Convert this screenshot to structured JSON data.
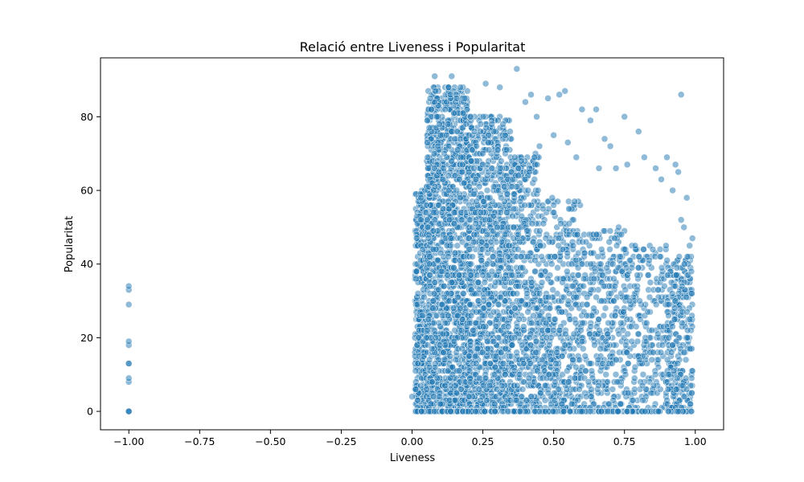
{
  "chart_data": {
    "type": "scatter",
    "title": "Relació entre Liveness i Popularitat",
    "xlabel": "Liveness",
    "ylabel": "Popularitat",
    "xlim": [
      -1.1,
      1.1
    ],
    "ylim": [
      -5,
      96
    ],
    "xticks": [
      -1.0,
      -0.75,
      -0.5,
      -0.25,
      0.0,
      0.25,
      0.5,
      0.75,
      1.0
    ],
    "xtick_labels": [
      "−1.00",
      "−0.75",
      "−0.50",
      "−0.25",
      "0.00",
      "0.25",
      "0.50",
      "0.75",
      "1.00"
    ],
    "yticks": [
      0,
      20,
      40,
      60,
      80
    ],
    "ytick_labels": [
      "0",
      "20",
      "40",
      "60",
      "80"
    ],
    "grid": false,
    "marker_color": "#1f77b4",
    "marker_alpha": 0.5,
    "points": [
      [
        -1.0,
        0
      ],
      [
        -1.0,
        0
      ],
      [
        -1.0,
        0
      ],
      [
        -1.0,
        8
      ],
      [
        -1.0,
        9
      ],
      [
        -1.0,
        13
      ],
      [
        -1.0,
        13
      ],
      [
        -1.0,
        18
      ],
      [
        -1.0,
        19
      ],
      [
        -1.0,
        29
      ],
      [
        -1.0,
        33
      ],
      [
        -1.0,
        34
      ],
      [
        0.0,
        4
      ],
      [
        0.37,
        93
      ],
      [
        0.95,
        86
      ],
      [
        0.08,
        91
      ],
      [
        0.14,
        91
      ],
      [
        0.26,
        89
      ],
      [
        0.31,
        88
      ],
      [
        0.54,
        87
      ],
      [
        0.52,
        86
      ],
      [
        0.48,
        85
      ],
      [
        0.42,
        86
      ],
      [
        0.6,
        82
      ],
      [
        0.65,
        82
      ],
      [
        0.75,
        80
      ],
      [
        0.8,
        76
      ],
      [
        0.63,
        79
      ],
      [
        0.55,
        73
      ],
      [
        0.68,
        74
      ],
      [
        0.7,
        72
      ],
      [
        0.82,
        69
      ],
      [
        0.9,
        69
      ],
      [
        0.93,
        67
      ],
      [
        0.97,
        58
      ],
      [
        0.94,
        65
      ],
      [
        0.86,
        66
      ],
      [
        0.88,
        63
      ],
      [
        0.92,
        60
      ],
      [
        0.95,
        52
      ],
      [
        0.96,
        50
      ],
      [
        0.99,
        47
      ],
      [
        0.98,
        45
      ],
      [
        0.76,
        67
      ],
      [
        0.72,
        66
      ],
      [
        0.66,
        66
      ],
      [
        0.58,
        69
      ],
      [
        0.5,
        75
      ],
      [
        0.45,
        72
      ],
      [
        0.44,
        80
      ],
      [
        0.4,
        84
      ]
    ],
    "clusters": [
      {
        "x": [
          0.01,
          0.05
        ],
        "y_max": 60,
        "count": 350
      },
      {
        "x": [
          0.05,
          0.2
        ],
        "y_max": 88,
        "count": 1400
      },
      {
        "x": [
          0.2,
          0.35
        ],
        "y_max": 80,
        "count": 1000
      },
      {
        "x": [
          0.35,
          0.45
        ],
        "y_max": 70,
        "count": 450
      },
      {
        "x": [
          0.45,
          0.6
        ],
        "y_max": 58,
        "count": 450
      },
      {
        "x": [
          0.6,
          0.75
        ],
        "y_max": 50,
        "count": 320
      },
      {
        "x": [
          0.75,
          0.9
        ],
        "y_max": 45,
        "count": 260
      },
      {
        "x": [
          0.9,
          0.99
        ],
        "y_max": 42,
        "count": 280
      }
    ]
  }
}
